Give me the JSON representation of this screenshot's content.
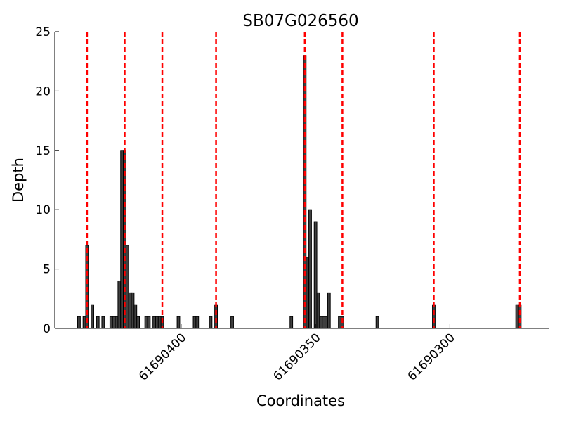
{
  "chart_data": {
    "type": "bar",
    "title": "SB07G026560",
    "x_label": "Coordinates",
    "y_label": "Depth",
    "x": [
      61690438,
      61690436,
      61690435,
      61690433,
      61690431,
      61690429,
      61690426,
      61690425,
      61690424,
      61690423,
      61690422,
      61690421,
      61690420,
      61690419,
      61690418,
      61690417,
      61690416,
      61690413,
      61690412,
      61690410,
      61690409,
      61690408,
      61690407,
      61690401,
      61690395,
      61690394,
      61690389,
      61690387,
      61690381,
      61690359,
      61690354,
      61690353,
      61690352,
      61690350,
      61690349,
      61690348,
      61690347,
      61690346,
      61690345,
      61690341,
      61690340,
      61690327,
      61690306,
      61690275,
      61690274
    ],
    "values": [
      1,
      1,
      7,
      2,
      1,
      1,
      1,
      1,
      1,
      4,
      15,
      15,
      7,
      3,
      3,
      2,
      1,
      1,
      1,
      1,
      1,
      1,
      1,
      1,
      1,
      1,
      1,
      2,
      1,
      1,
      23,
      6,
      10,
      9,
      3,
      1,
      1,
      1,
      3,
      1,
      1,
      1,
      2,
      2,
      2
    ],
    "color": "#404040",
    "vlines": [
      61690435,
      61690421,
      61690407,
      61690387,
      61690354,
      61690340,
      61690306,
      61690274
    ],
    "vline_color": "#ff0000",
    "xlim": [
      61690447,
      61690263
    ],
    "xticks": [
      61690400,
      61690350,
      61690300
    ],
    "ylim": [
      0,
      25
    ],
    "yticks": [
      0,
      5,
      10,
      15,
      20,
      25
    ]
  }
}
